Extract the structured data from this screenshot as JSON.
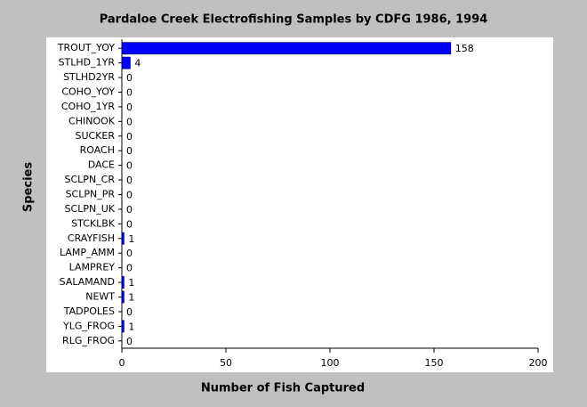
{
  "chart_data": {
    "type": "hbar",
    "title": "Pardaloe Creek Electrofishing Samples by CDFG 1986, 1994",
    "x_label": "Number of Fish Captured",
    "y_label": "Species",
    "categories": [
      "TROUT_YOY",
      "STLHD_1YR",
      "STLHD2YR",
      "COHO_YOY",
      "COHO_1YR",
      "CHINOOK",
      "SUCKER",
      "ROACH",
      "DACE",
      "SCLPN_CR",
      "SCLPN_PR",
      "SCLPN_UK",
      "STCKLBK",
      "CRAYFISH",
      "LAMP_AMM",
      "LAMPREY",
      "SALAMAND",
      "NEWT",
      "TADPOLES",
      "YLG_FROG",
      "RLG_FROG"
    ],
    "values": [
      158,
      4,
      0,
      0,
      0,
      0,
      0,
      0,
      0,
      0,
      0,
      0,
      0,
      1,
      0,
      0,
      1,
      1,
      0,
      1,
      0
    ],
    "color": "#0000ff",
    "xlim": [
      0,
      200
    ],
    "xticks": [
      0,
      50,
      100,
      150,
      200
    ]
  }
}
